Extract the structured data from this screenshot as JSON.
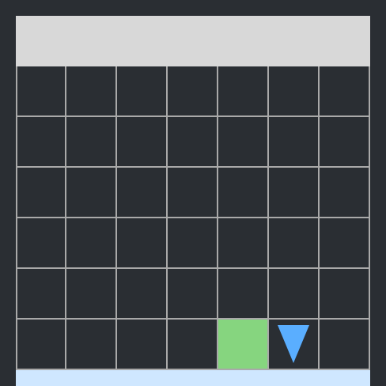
{
  "board": {
    "rows": 6,
    "cols": 7,
    "tiles": [
      {
        "row": 5,
        "col": 4,
        "kind": "goal",
        "color": "#86d57f"
      },
      {
        "row": 5,
        "col": 5,
        "kind": "player",
        "icon": "down-triangle-icon",
        "color": "#5aaeff"
      }
    ]
  },
  "colors": {
    "background": "#2a2e33",
    "grid_line": "#a9a9a9",
    "top_bar": "#d8d8d8",
    "bottom_bar": "#cfe7ff"
  }
}
